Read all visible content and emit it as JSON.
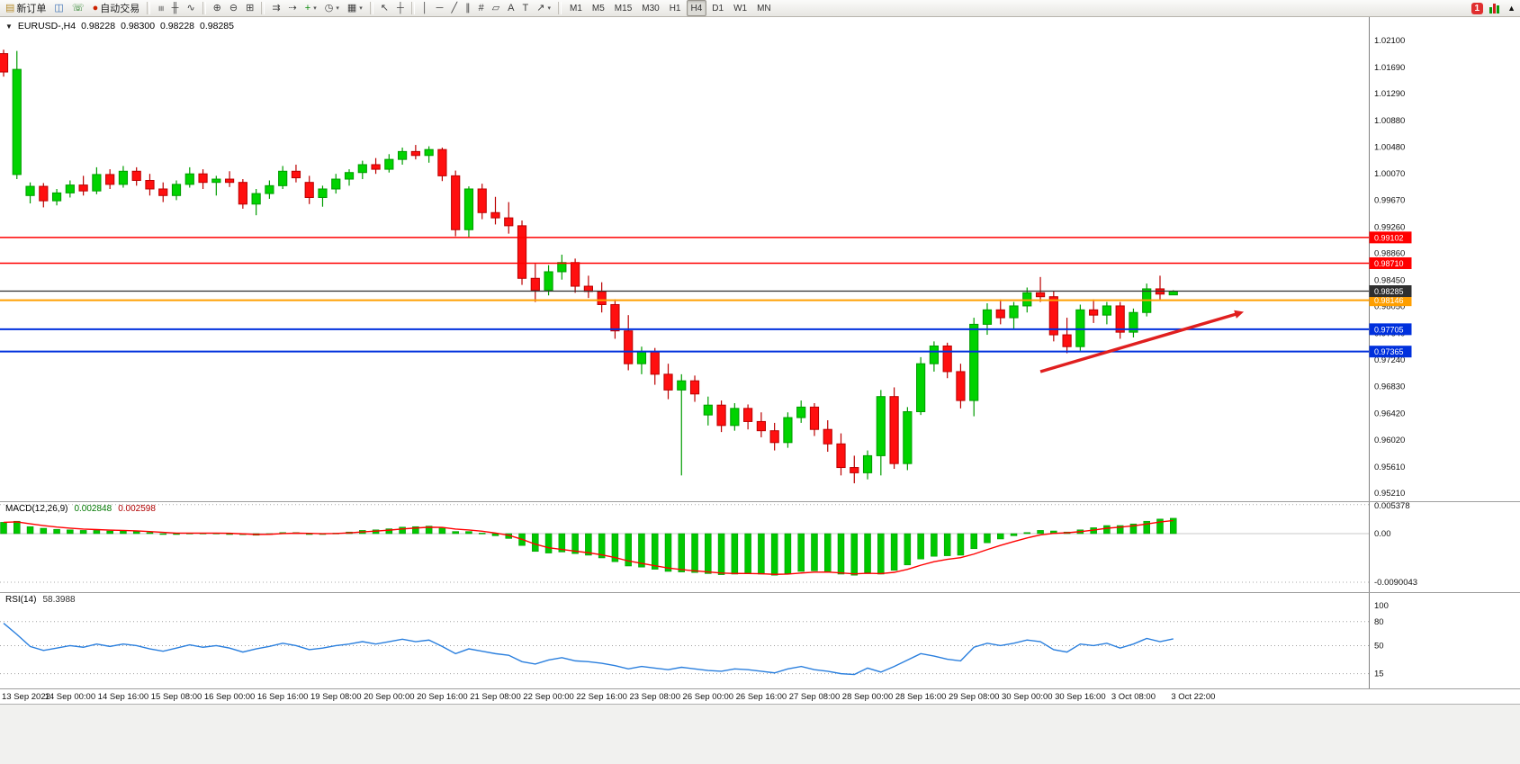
{
  "toolbar": {
    "buttons": [
      {
        "name": "new-order",
        "glyph": "▤",
        "glyph_color": "#b58a2a",
        "label": "新订单"
      },
      {
        "name": "chart-window",
        "glyph": "◫",
        "glyph_color": "#3a6fb5"
      },
      {
        "name": "market-watch",
        "glyph": "☏",
        "glyph_color": "#1a7a1a"
      },
      {
        "name": "auto-trading",
        "glyph": "●",
        "glyph_color": "#cc2200",
        "label": "自动交易"
      },
      {
        "name": "sep"
      },
      {
        "name": "bars-mode",
        "glyph": "≡",
        "cls": "rot90"
      },
      {
        "name": "candlestick-mode",
        "glyph": "╫"
      },
      {
        "name": "line-chart-mode",
        "glyph": "∿"
      },
      {
        "name": "sep"
      },
      {
        "name": "zoom-in",
        "glyph": "⊕"
      },
      {
        "name": "zoom-out",
        "glyph": "⊖"
      },
      {
        "name": "tile-windows",
        "glyph": "⊞"
      },
      {
        "name": "sep"
      },
      {
        "name": "auto-scroll",
        "glyph": "⇉"
      },
      {
        "name": "chart-shift",
        "glyph": "⇢"
      },
      {
        "name": "add-indicator",
        "glyph": "+",
        "glyph_color": "#0a8a0a",
        "dropdown": true
      },
      {
        "name": "periods",
        "glyph": "◷",
        "dropdown": true
      },
      {
        "name": "templates",
        "glyph": "▦",
        "dropdown": true
      },
      {
        "name": "sep"
      },
      {
        "name": "cursor",
        "glyph": "↖"
      },
      {
        "name": "crosshair",
        "glyph": "┼"
      },
      {
        "name": "sep"
      },
      {
        "name": "vertical-line",
        "glyph": "│"
      },
      {
        "name": "horizontal-line",
        "glyph": "─"
      },
      {
        "name": "trendline",
        "glyph": "╱"
      },
      {
        "name": "equidistant-channel",
        "glyph": "∥"
      },
      {
        "name": "fibonacci",
        "glyph": "#"
      },
      {
        "name": "shapes",
        "glyph": "▱"
      },
      {
        "name": "text",
        "glyph": "A"
      },
      {
        "name": "text-label",
        "glyph": "T"
      },
      {
        "name": "arrows",
        "glyph": "↗",
        "dropdown": true
      },
      {
        "name": "sep"
      }
    ],
    "timeframes": {
      "items": [
        "M1",
        "M5",
        "M15",
        "M30",
        "H1",
        "H4",
        "D1",
        "W1",
        "MN"
      ],
      "active": "H4"
    },
    "notification_badge": "1",
    "overflow_icon": "▲"
  },
  "chart_header": {
    "collapse_icon": "▼",
    "symbol_period": "EURUSD-,H4",
    "open": "0.98228",
    "high": "0.98300",
    "low": "0.98228",
    "close": "0.98285"
  },
  "indicators": {
    "macd": {
      "name": "MACD(12,26,9)",
      "main_value": "0.002848",
      "signal_value": "0.002598"
    },
    "rsi": {
      "name": "RSI(14)",
      "value": "58.3988"
    }
  },
  "chart_data": {
    "type": "candlestick",
    "symbol": "EURUSD-",
    "timeframe": "H4",
    "current_ohlc": {
      "open": 0.98228,
      "high": 0.983,
      "low": 0.98228,
      "close": 0.98285
    },
    "ylim": [
      0.95087,
      1.02456
    ],
    "y_axis_labels": [
      "1.02100",
      "1.01690",
      "1.01290",
      "1.00880",
      "1.00480",
      "1.00070",
      "0.99670",
      "0.99260",
      "0.98860",
      "0.98450",
      "0.98050",
      "0.97640",
      "0.97240",
      "0.96830",
      "0.96420",
      "0.96020",
      "0.95610",
      "0.95210"
    ],
    "x_axis_labels": [
      {
        "t": "13 Sep 2022",
        "i": 1
      },
      {
        "t": "14 Sep 00:00",
        "i": 5
      },
      {
        "t": "14 Sep 16:00",
        "i": 9
      },
      {
        "t": "15 Sep 08:00",
        "i": 13
      },
      {
        "t": "16 Sep 00:00",
        "i": 17
      },
      {
        "t": "16 Sep 16:00",
        "i": 21
      },
      {
        "t": "19 Sep 08:00",
        "i": 25
      },
      {
        "t": "20 Sep 00:00",
        "i": 29
      },
      {
        "t": "20 Sep 16:00",
        "i": 33
      },
      {
        "t": "21 Sep 08:00",
        "i": 37
      },
      {
        "t": "22 Sep 00:00",
        "i": 41
      },
      {
        "t": "22 Sep 16:00",
        "i": 45
      },
      {
        "t": "23 Sep 08:00",
        "i": 49
      },
      {
        "t": "26 Sep 00:00",
        "i": 53
      },
      {
        "t": "26 Sep 16:00",
        "i": 57
      },
      {
        "t": "27 Sep 08:00",
        "i": 61
      },
      {
        "t": "28 Sep 00:00",
        "i": 65
      },
      {
        "t": "28 Sep 16:00",
        "i": 69
      },
      {
        "t": "29 Sep 08:00",
        "i": 73
      },
      {
        "t": "30 Sep 00:00",
        "i": 77
      },
      {
        "t": "30 Sep 16:00",
        "i": 81
      },
      {
        "t": "3 Oct 08:00",
        "i": 85
      },
      {
        "t": "3 Oct 22:00",
        "i": 89.5
      }
    ],
    "candles": [
      [
        1.019,
        1.0196,
        1.0155,
        1.0162
      ],
      [
        1.0006,
        1.0194,
        0.9999,
        1.0166
      ],
      [
        0.9974,
        0.9994,
        0.9962,
        0.9988
      ],
      [
        0.9988,
        0.9993,
        0.9956,
        0.9966
      ],
      [
        0.9966,
        0.9984,
        0.9959,
        0.9978
      ],
      [
        0.9978,
        0.9997,
        0.9971,
        0.999
      ],
      [
        0.999,
        1.0004,
        0.9974,
        0.9981
      ],
      [
        0.9981,
        1.0017,
        0.9976,
        1.0006
      ],
      [
        1.0006,
        1.0014,
        0.9984,
        0.9991
      ],
      [
        0.9991,
        1.0019,
        0.9986,
        1.0011
      ],
      [
        1.0011,
        1.0017,
        0.9989,
        0.9997
      ],
      [
        0.9997,
        1.0007,
        0.9974,
        0.9984
      ],
      [
        0.9984,
        0.9994,
        0.9964,
        0.9974
      ],
      [
        0.9974,
        0.9997,
        0.9967,
        0.9991
      ],
      [
        0.9991,
        1.0017,
        0.9986,
        1.0007
      ],
      [
        1.0007,
        1.0014,
        0.9984,
        0.9994
      ],
      [
        0.9994,
        1.0004,
        0.9974,
        0.9999
      ],
      [
        0.9999,
        1.0011,
        0.9987,
        0.9994
      ],
      [
        0.9994,
        0.9999,
        0.9954,
        0.9961
      ],
      [
        0.9961,
        0.9984,
        0.9944,
        0.9977
      ],
      [
        0.9977,
        0.9997,
        0.9969,
        0.9989
      ],
      [
        0.9989,
        1.0019,
        0.9984,
        1.0011
      ],
      [
        1.0011,
        1.0021,
        0.9994,
        1.0001
      ],
      [
        0.9994,
        1.0004,
        0.9961,
        0.9971
      ],
      [
        0.9971,
        0.9989,
        0.9957,
        0.9984
      ],
      [
        0.9984,
        1.0007,
        0.9977,
        0.9999
      ],
      [
        0.9999,
        1.0014,
        0.9989,
        1.0009
      ],
      [
        1.0009,
        1.0027,
        0.9999,
        1.0021
      ],
      [
        1.0021,
        1.0031,
        1.0007,
        1.0014
      ],
      [
        1.0014,
        1.0037,
        1.0009,
        1.0029
      ],
      [
        1.0029,
        1.0047,
        1.0021,
        1.0041
      ],
      [
        1.0041,
        1.0051,
        1.0029,
        1.0035
      ],
      [
        1.0035,
        1.0049,
        1.0024,
        1.0044
      ],
      [
        1.0044,
        1.0047,
        0.9996,
        1.0004
      ],
      [
        1.0004,
        1.0012,
        0.9912,
        0.9922
      ],
      [
        0.9922,
        0.9988,
        0.991,
        0.9984
      ],
      [
        0.9984,
        0.9992,
        0.9938,
        0.9948
      ],
      [
        0.9948,
        0.9972,
        0.993,
        0.994
      ],
      [
        0.994,
        0.9964,
        0.9916,
        0.9928
      ],
      [
        0.9928,
        0.9936,
        0.9838,
        0.9848
      ],
      [
        0.9848,
        0.987,
        0.9812,
        0.983
      ],
      [
        0.983,
        0.9868,
        0.9822,
        0.9858
      ],
      [
        0.9858,
        0.9884,
        0.9846,
        0.9872
      ],
      [
        0.9872,
        0.9878,
        0.9826,
        0.9836
      ],
      [
        0.9836,
        0.9852,
        0.9818,
        0.9828
      ],
      [
        0.9828,
        0.9842,
        0.9796,
        0.9808
      ],
      [
        0.9808,
        0.9816,
        0.9756,
        0.9768
      ],
      [
        0.9768,
        0.9792,
        0.9708,
        0.9718
      ],
      [
        0.9718,
        0.9744,
        0.9702,
        0.9736
      ],
      [
        0.9736,
        0.9742,
        0.9686,
        0.9702
      ],
      [
        0.9702,
        0.9718,
        0.9664,
        0.9678
      ],
      [
        0.9678,
        0.9702,
        0.9548,
        0.9692
      ],
      [
        0.9692,
        0.97,
        0.966,
        0.9672
      ],
      [
        0.964,
        0.9668,
        0.9624,
        0.9655
      ],
      [
        0.9655,
        0.9662,
        0.9614,
        0.9624
      ],
      [
        0.9624,
        0.9658,
        0.9616,
        0.965
      ],
      [
        0.965,
        0.9656,
        0.9618,
        0.963
      ],
      [
        0.963,
        0.9644,
        0.9606,
        0.9616
      ],
      [
        0.9616,
        0.9628,
        0.9586,
        0.9598
      ],
      [
        0.9598,
        0.9644,
        0.959,
        0.9636
      ],
      [
        0.9636,
        0.9662,
        0.9628,
        0.9652
      ],
      [
        0.9652,
        0.9658,
        0.9608,
        0.9618
      ],
      [
        0.9618,
        0.9632,
        0.9584,
        0.9596
      ],
      [
        0.9596,
        0.9612,
        0.9548,
        0.956
      ],
      [
        0.956,
        0.9578,
        0.9536,
        0.9552
      ],
      [
        0.9552,
        0.9586,
        0.9542,
        0.9578
      ],
      [
        0.9578,
        0.9678,
        0.9548,
        0.9668
      ],
      [
        0.9668,
        0.9682,
        0.9558,
        0.9566
      ],
      [
        0.9566,
        0.9652,
        0.9556,
        0.9645
      ],
      [
        0.9645,
        0.9728,
        0.964,
        0.9718
      ],
      [
        0.9718,
        0.9752,
        0.9706,
        0.9745
      ],
      [
        0.9745,
        0.975,
        0.9696,
        0.9706
      ],
      [
        0.9706,
        0.9718,
        0.965,
        0.9662
      ],
      [
        0.9662,
        0.9788,
        0.9638,
        0.9778
      ],
      [
        0.9778,
        0.981,
        0.9762,
        0.98
      ],
      [
        0.98,
        0.9816,
        0.9778,
        0.9788
      ],
      [
        0.9788,
        0.9812,
        0.977,
        0.9806
      ],
      [
        0.9806,
        0.9834,
        0.9796,
        0.9826
      ],
      [
        0.9826,
        0.985,
        0.9812,
        0.982
      ],
      [
        0.982,
        0.9828,
        0.9752,
        0.9762
      ],
      [
        0.9762,
        0.9788,
        0.9734,
        0.9744
      ],
      [
        0.9744,
        0.9808,
        0.9738,
        0.98
      ],
      [
        0.98,
        0.9816,
        0.978,
        0.9792
      ],
      [
        0.9792,
        0.9812,
        0.9778,
        0.9806
      ],
      [
        0.9806,
        0.9812,
        0.9756,
        0.9766
      ],
      [
        0.9766,
        0.9802,
        0.9758,
        0.9796
      ],
      [
        0.9796,
        0.984,
        0.979,
        0.9832
      ],
      [
        0.9832,
        0.9852,
        0.9816,
        0.9824
      ],
      [
        0.98228,
        0.983,
        0.98228,
        0.98285
      ]
    ],
    "levels": [
      {
        "price": 0.99102,
        "color": "#FF0000",
        "width": 1.4
      },
      {
        "price": 0.9871,
        "color": "#FF0000",
        "width": 1.4
      },
      {
        "price": 0.98146,
        "color": "#FF9F00",
        "width": 2
      },
      {
        "price": 0.97705,
        "color": "#0030DD",
        "width": 2
      },
      {
        "price": 0.97365,
        "color": "#0030DD",
        "width": 2
      }
    ],
    "current_price_line": {
      "price": 0.98285,
      "color": "#2F2F2F",
      "width": 1.2
    },
    "trend_arrow": {
      "from_index": 78,
      "from_price": 0.9706,
      "to_index": 93.3,
      "to_price": 0.9797,
      "color": "#E01F1F"
    },
    "macd": {
      "histogram": [
        0.0021,
        0.0023,
        0.0013,
        0.001,
        0.0008,
        0.0007,
        0.0006,
        0.0006,
        0.0005,
        0.0005,
        0.0004,
        0.0002,
        0.0,
        -0.0001,
        0.0001,
        0.0001,
        0.0001,
        0.0,
        -0.0002,
        -0.0003,
        -0.0001,
        0.0002,
        0.0002,
        0.0,
        -0.0001,
        0.0001,
        0.0003,
        0.0006,
        0.0007,
        0.0009,
        0.0012,
        0.0013,
        0.0014,
        0.0011,
        0.0004,
        0.0004,
        0.0001,
        -0.0004,
        -0.0009,
        -0.0022,
        -0.0033,
        -0.0036,
        -0.0034,
        -0.0037,
        -0.004,
        -0.0045,
        -0.0052,
        -0.006,
        -0.0062,
        -0.0066,
        -0.007,
        -0.0071,
        -0.0072,
        -0.0074,
        -0.0076,
        -0.0075,
        -0.0074,
        -0.0075,
        -0.0077,
        -0.0074,
        -0.007,
        -0.0069,
        -0.0071,
        -0.0075,
        -0.0077,
        -0.0072,
        -0.0075,
        -0.0068,
        -0.0058,
        -0.0047,
        -0.0042,
        -0.0041,
        -0.004,
        -0.0028,
        -0.0017,
        -0.001,
        -0.0004,
        0.0002,
        0.0006,
        0.0005,
        0.0003,
        0.0007,
        0.0011,
        0.0015,
        0.0015,
        0.0018,
        0.0023,
        0.0027,
        0.002848
      ],
      "axis_labels": [
        "0.005378",
        "0.00",
        "-0.0090043"
      ],
      "ylim": [
        -0.01083,
        0.00583
      ],
      "hist_color": "#00C800",
      "signal_color": "#FF0000"
    },
    "rsi": {
      "series": [
        78,
        64,
        49,
        44,
        47,
        50,
        48,
        52,
        49,
        52,
        50,
        46,
        43,
        47,
        51,
        48,
        50,
        47,
        42,
        46,
        49,
        53,
        50,
        45,
        47,
        50,
        52,
        55,
        52,
        55,
        58,
        55,
        57,
        49,
        40,
        46,
        43,
        40,
        38,
        30,
        27,
        32,
        35,
        31,
        30,
        28,
        25,
        21,
        24,
        22,
        20,
        23,
        21,
        19,
        18,
        21,
        20,
        18,
        16,
        21,
        24,
        20,
        18,
        15,
        14,
        22,
        17,
        24,
        32,
        40,
        37,
        33,
        31,
        48,
        53,
        50,
        53,
        57,
        55,
        45,
        42,
        52,
        50,
        53,
        47,
        52,
        59,
        55,
        58.4
      ],
      "level_lines": [
        80,
        50,
        15
      ],
      "axis_labels": [
        "100",
        "80",
        "50",
        "15"
      ],
      "ylim": [
        -3.4,
        115.7
      ],
      "line_color": "#2A7FDE"
    },
    "colors": {
      "up": "#00D300",
      "up_edge": "#009C00",
      "down": "#FF0F0F",
      "down_edge": "#BB0000",
      "background": "#FFFFFF"
    }
  }
}
